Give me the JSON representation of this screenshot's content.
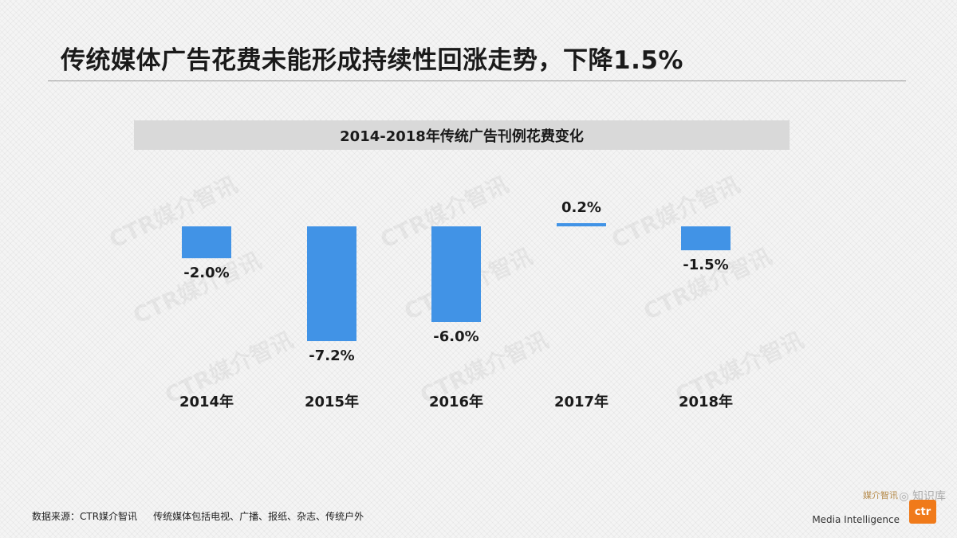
{
  "slide": {
    "title": "传统媒体广告花费未能形成持续性回涨走势，下降1.5%"
  },
  "chart_data": {
    "type": "bar",
    "title": "2014-2018年传统广告刊例花费变化",
    "categories": [
      "2014年",
      "2015年",
      "2016年",
      "2017年",
      "2018年"
    ],
    "values": [
      -2.0,
      -7.2,
      -6.0,
      0.2,
      -1.5
    ],
    "data_labels": [
      "-2.0%",
      "-7.2%",
      "-6.0%",
      "0.2%",
      "-1.5%"
    ],
    "unit": "%",
    "xlabel": "",
    "ylabel": "",
    "grid": false,
    "legend": "none",
    "bar_color": "#4193e6"
  },
  "watermark": {
    "text": "CTR媒介智讯"
  },
  "footer": {
    "source": "数据来源：CTR媒介智讯",
    "note": "传统媒体包括电视、广播、报纸、杂志、传统户外"
  },
  "brand": {
    "top_text": "媒介智讯",
    "sub_text": "Media Intelligence",
    "logo_text": "ctr"
  },
  "wechat_mark": {
    "text": "知识库"
  }
}
